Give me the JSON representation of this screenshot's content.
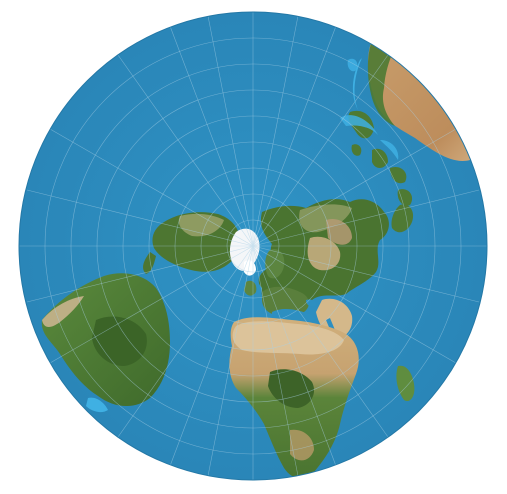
{
  "map": {
    "projection": "azimuthal-equidistant-north-polar",
    "colors": {
      "ocean": "#2d8fc1",
      "ocean_edge": "#2478a6",
      "shallow": "#3fb0e3",
      "land_green": "#4f7a34",
      "land_dark": "#3d6328",
      "desert": "#c9a774",
      "desert_light": "#dcc49c",
      "ice": "#f4f6f8",
      "grid": "#a9d0e6"
    },
    "regions": [
      "north-america",
      "greenland-ice",
      "eurasia",
      "africa",
      "south-america",
      "australia",
      "madagascar",
      "arabian-peninsula",
      "indonesia",
      "japan",
      "british-isles",
      "antarctica-fragment"
    ]
  }
}
